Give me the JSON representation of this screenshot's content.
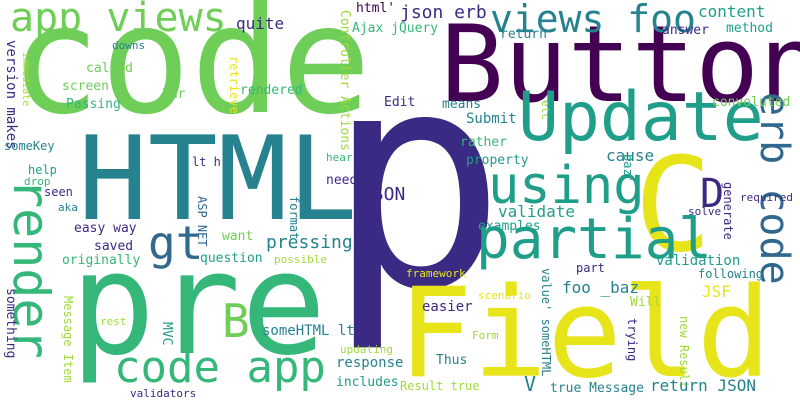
{
  "palette": {
    "dark_purple": "#440154",
    "indigo": "#3b2a84",
    "blue": "#31688e",
    "teal_blue": "#26828e",
    "teal": "#1f9e89",
    "green": "#35b779",
    "lime": "#6ece58",
    "light_green": "#9fda3a",
    "yellow": "#e7e419"
  },
  "words": {
    "code": "code",
    "Button": "Button",
    "p": "p",
    "HTML": "HTML",
    "pre": "pre",
    "Field": "Field",
    "Update": "Update",
    "app_views": "app views",
    "views_foo": "views foo",
    "using": "using",
    "render": "render",
    "partial": "partial",
    "C": "C",
    "erb_code": "erb code",
    "gt": "gt",
    "code_app": "code app",
    "B": "B",
    "D": "D",
    "json_erb": "json erb",
    "content": "content",
    "method": "method",
    "answer": "answer",
    "return": "return",
    "version_makes": "version makes",
    "immediate": "immediate",
    "downs": "downs",
    "Controller_Actions": "Controller Actions",
    "Ajax_jQuery": "Ajax jQuery",
    "html": "html'",
    "quite": "quite",
    "rendered": "rendered",
    "retrieve": "retrieve",
    "called": "called",
    "screen": "screen",
    "Passing": "Passing",
    "bar": "bar",
    "someKey": "someKey",
    "help": "help",
    "drop": "drop",
    "seen": "seen",
    "aka": "aka",
    "lt_h": "lt h",
    "ASP_NET": "ASP NET",
    "format": "format",
    "easy_way": "easy way",
    "saved": "saved",
    "originally": "originally",
    "want": "want",
    "question": "question",
    "possible": "possible",
    "pressing": "pressing",
    "MVC": "MVC",
    "Edit": "Edit",
    "means": "means",
    "Submit": "Submit",
    "rather": "rather",
    "property": "property",
    "cause": "cause",
    "hear": "hear",
    "need": "need",
    "JSON": "JSON",
    "validate": "validate",
    "examples": "examples",
    "validation": "validation",
    "foo_baz": "foo _baz",
    "JSF": "JSF",
    "part": "part",
    "framework": "framework",
    "scenario": "scenario",
    "Will": "Will",
    "easier": "easier",
    "trying": "trying",
    "value_someHTML": "value' someHTML",
    "new_Result": "new Result",
    "someHTML_lt": "someHTML lt",
    "Message_Item": "Message Item",
    "something": "something",
    "rest": "rest",
    "response": "response",
    "updating": "updating",
    "Form": "Form",
    "Thus": "Thus",
    "includes": "includes",
    "Result_true": "Result true",
    "V": "V",
    "true_Message": "true Message",
    "return_JSON": "return JSON",
    "validators": "validators",
    "etc": "etc",
    "baz": "baz'",
    "convoluted": "convoluted",
    "generate": "generate",
    "required": "required",
    "solve": "solve",
    "following": "following"
  }
}
